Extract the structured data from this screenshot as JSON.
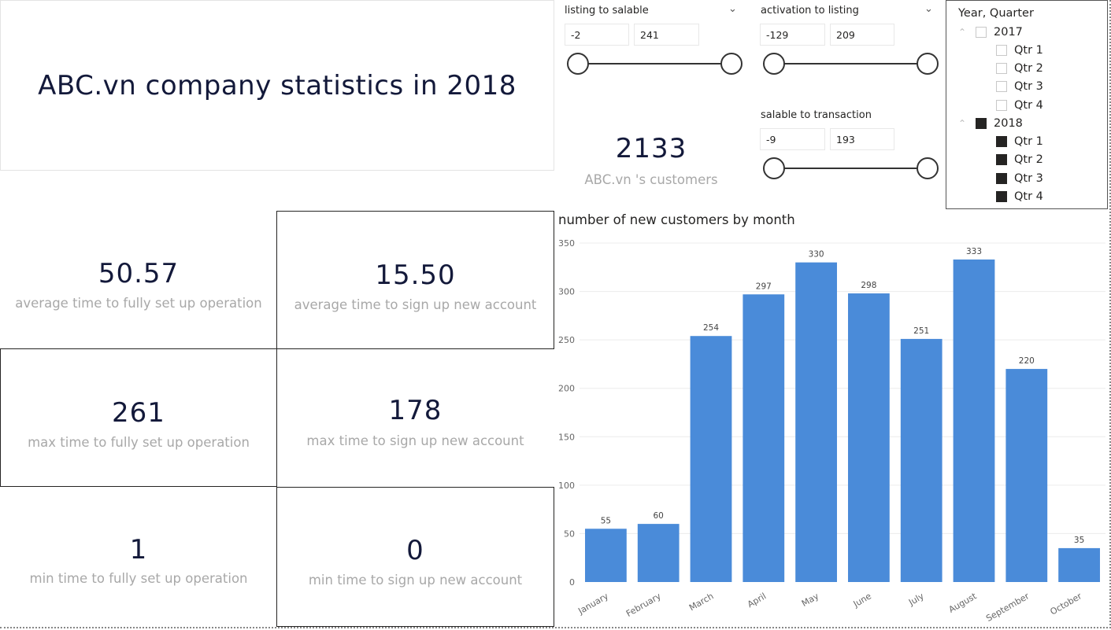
{
  "title": "ABC.vn company statistics in 2018",
  "kpis": {
    "avg_setup": {
      "value": "50.57",
      "label": "average time to fully set up operation"
    },
    "avg_signup": {
      "value": "15.50",
      "label": "average time to sign up new account"
    },
    "max_setup": {
      "value": "261",
      "label": "max time to fully set up operation"
    },
    "max_signup": {
      "value": "178",
      "label": "max time to sign up new account"
    },
    "min_setup": {
      "value": "1",
      "label": "min time to fully set up operation"
    },
    "min_signup": {
      "value": "0",
      "label": "min time to sign up new account"
    }
  },
  "customers": {
    "value": "2133",
    "label": "ABC.vn 's customers"
  },
  "sliders": {
    "listing_to_salable": {
      "title": "listing to salable",
      "min": "-2",
      "max": "241"
    },
    "activation_to_listing": {
      "title": "activation to listing",
      "min": "-129",
      "max": "209"
    },
    "salable_to_transaction": {
      "title": "salable to transaction",
      "min": "-9",
      "max": "193"
    }
  },
  "icons": {
    "chevron": "chevron-down-icon",
    "caret": "caret-up-icon"
  },
  "hierarchy": {
    "title": "Year, Quarter",
    "years": [
      {
        "label": "2017",
        "checked": false,
        "quarters": [
          {
            "label": "Qtr 1",
            "checked": false
          },
          {
            "label": "Qtr 2",
            "checked": false
          },
          {
            "label": "Qtr 3",
            "checked": false
          },
          {
            "label": "Qtr 4",
            "checked": false
          }
        ]
      },
      {
        "label": "2018",
        "checked": true,
        "quarters": [
          {
            "label": "Qtr 1",
            "checked": true
          },
          {
            "label": "Qtr 2",
            "checked": true
          },
          {
            "label": "Qtr 3",
            "checked": true
          },
          {
            "label": "Qtr 4",
            "checked": true
          }
        ]
      }
    ]
  },
  "chart_data": {
    "type": "bar",
    "title": "number of new customers by month",
    "categories": [
      "January",
      "February",
      "March",
      "April",
      "May",
      "June",
      "July",
      "August",
      "September",
      "October"
    ],
    "values": [
      55,
      60,
      254,
      297,
      330,
      298,
      251,
      333,
      220,
      35
    ],
    "ylim": [
      0,
      350
    ],
    "yticks": [
      0,
      50,
      100,
      150,
      200,
      250,
      300,
      350
    ],
    "grid": true,
    "color": "#4a8bd9"
  }
}
